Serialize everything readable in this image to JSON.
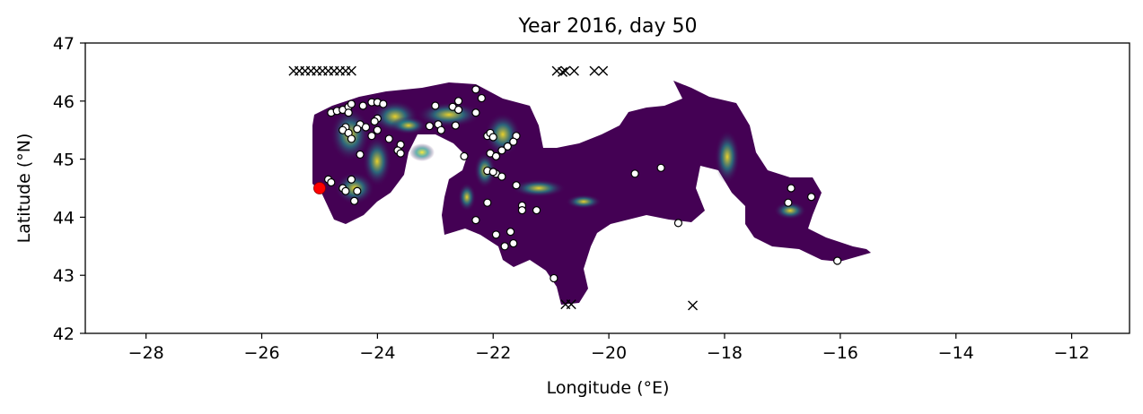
{
  "chart_data": {
    "type": "scatter",
    "title": "Year 2016, day 50",
    "xlabel": "Longitude (°E)",
    "ylabel": "Latitude (°N)",
    "xlim": [
      -29.05,
      -11.0
    ],
    "ylim": [
      42.0,
      47.0
    ],
    "xticks": [
      -28,
      -26,
      -24,
      -22,
      -20,
      -18,
      -16,
      -14,
      -12
    ],
    "yticks": [
      42,
      43,
      44,
      45,
      46,
      47
    ],
    "xtick_labels": [
      "−28",
      "−26",
      "−24",
      "−22",
      "−20",
      "−18",
      "−16",
      "−14",
      "−12"
    ],
    "ytick_labels": [
      "42",
      "43",
      "44",
      "45",
      "46",
      "47"
    ],
    "grid": false,
    "colors": {
      "field_low": "#440154",
      "field_mid": "#21918c",
      "field_high": "#fde725",
      "point_fill": "#ffffff",
      "point_edge": "#000000",
      "highlight": "#ff0000",
      "cross": "#000000"
    },
    "colormap": "viridis",
    "series": [
      {
        "marker": "circle-open",
        "points": [
          [
            -22.3,
            46.2
          ],
          [
            -22.2,
            46.05
          ],
          [
            -22.6,
            46.0
          ],
          [
            -22.7,
            45.9
          ],
          [
            -22.6,
            45.85
          ],
          [
            -22.3,
            45.8
          ],
          [
            -23.0,
            45.92
          ],
          [
            -22.95,
            45.6
          ],
          [
            -22.9,
            45.5
          ],
          [
            -23.1,
            45.57
          ],
          [
            -22.65,
            45.58
          ],
          [
            -24.8,
            45.8
          ],
          [
            -24.7,
            45.83
          ],
          [
            -24.6,
            45.85
          ],
          [
            -24.5,
            45.9
          ],
          [
            -24.45,
            45.95
          ],
          [
            -24.25,
            45.92
          ],
          [
            -24.1,
            45.98
          ],
          [
            -24.0,
            45.98
          ],
          [
            -23.9,
            45.95
          ],
          [
            -24.5,
            45.8
          ],
          [
            -24.0,
            45.7
          ],
          [
            -24.05,
            45.65
          ],
          [
            -24.3,
            45.6
          ],
          [
            -24.2,
            45.55
          ],
          [
            -24.35,
            45.52
          ],
          [
            -24.55,
            45.55
          ],
          [
            -24.6,
            45.5
          ],
          [
            -24.5,
            45.45
          ],
          [
            -24.45,
            45.35
          ],
          [
            -24.0,
            45.5
          ],
          [
            -24.1,
            45.4
          ],
          [
            -23.8,
            45.35
          ],
          [
            -23.6,
            45.25
          ],
          [
            -23.65,
            45.15
          ],
          [
            -23.6,
            45.1
          ],
          [
            -24.3,
            45.08
          ],
          [
            -22.5,
            45.05
          ],
          [
            -22.1,
            45.4
          ],
          [
            -22.05,
            45.45
          ],
          [
            -22.0,
            45.38
          ],
          [
            -21.6,
            45.4
          ],
          [
            -21.65,
            45.3
          ],
          [
            -21.75,
            45.22
          ],
          [
            -21.85,
            45.15
          ],
          [
            -22.05,
            45.1
          ],
          [
            -21.95,
            45.05
          ],
          [
            -22.1,
            44.8
          ],
          [
            -21.95,
            44.75
          ],
          [
            -22.0,
            44.78
          ],
          [
            -21.85,
            44.7
          ],
          [
            -21.6,
            44.55
          ],
          [
            -22.1,
            44.25
          ],
          [
            -22.3,
            43.95
          ],
          [
            -21.5,
            44.2
          ],
          [
            -21.5,
            44.12
          ],
          [
            -21.25,
            44.12
          ],
          [
            -21.7,
            43.75
          ],
          [
            -21.95,
            43.7
          ],
          [
            -21.8,
            43.5
          ],
          [
            -21.65,
            43.55
          ],
          [
            -24.85,
            44.65
          ],
          [
            -24.8,
            44.6
          ],
          [
            -24.6,
            44.5
          ],
          [
            -24.55,
            44.45
          ],
          [
            -24.45,
            44.65
          ],
          [
            -24.35,
            44.45
          ],
          [
            -24.4,
            44.28
          ],
          [
            -19.55,
            44.75
          ],
          [
            -19.1,
            44.85
          ],
          [
            -18.8,
            43.9
          ],
          [
            -16.85,
            44.5
          ],
          [
            -16.9,
            44.25
          ],
          [
            -16.5,
            44.35
          ],
          [
            -16.05,
            43.25
          ],
          [
            -20.95,
            42.95
          ]
        ]
      },
      {
        "marker": "x",
        "points": [
          [
            -25.45,
            46.52
          ],
          [
            -25.35,
            46.52
          ],
          [
            -25.25,
            46.52
          ],
          [
            -25.15,
            46.52
          ],
          [
            -25.05,
            46.52
          ],
          [
            -24.95,
            46.52
          ],
          [
            -24.85,
            46.52
          ],
          [
            -24.75,
            46.52
          ],
          [
            -24.65,
            46.52
          ],
          [
            -24.55,
            46.52
          ],
          [
            -24.45,
            46.52
          ],
          [
            -20.9,
            46.52
          ],
          [
            -20.8,
            46.5
          ],
          [
            -20.75,
            46.52
          ],
          [
            -20.6,
            46.52
          ],
          [
            -20.25,
            46.52
          ],
          [
            -20.1,
            46.52
          ],
          [
            -20.75,
            42.5
          ],
          [
            -20.65,
            42.5
          ],
          [
            -18.55,
            42.48
          ]
        ]
      },
      {
        "marker": "circle-filled",
        "points": [
          [
            -25.0,
            44.5
          ]
        ]
      }
    ]
  }
}
